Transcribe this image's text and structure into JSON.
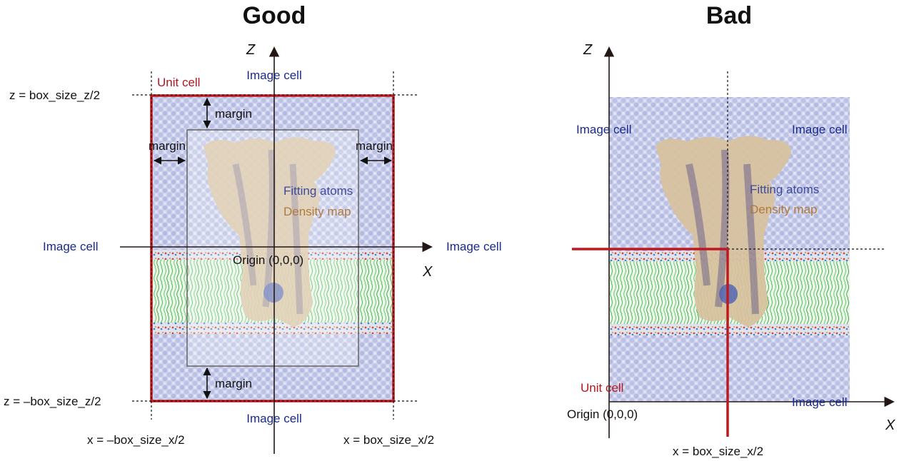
{
  "good": {
    "title": "Good",
    "unit_cell": "Unit cell",
    "image_top": "Image cell",
    "image_bottom": "Image cell",
    "image_left": "Image cell",
    "image_right": "Image cell",
    "margin_top": "margin",
    "margin_left": "margin",
    "margin_right": "margin",
    "margin_bottom": "margin",
    "fitting_atoms": "Fitting atoms",
    "density_map": "Density map",
    "origin": "Origin (0,0,0)",
    "z_top": "z = box_size_z/2",
    "z_bottom": "z = –box_size_z/2",
    "x_left": "x = –box_size_x/2",
    "x_right": "x = box_size_x/2",
    "axis_z": "Z",
    "axis_x": "X"
  },
  "bad": {
    "title": "Bad",
    "image_tl": "Image cell",
    "image_tr": "Image cell",
    "image_br": "Image cell",
    "unit_cell": "Unit cell",
    "fitting_atoms": "Fitting atoms",
    "density_map": "Density map",
    "origin": "Origin (0,0,0)",
    "x_half": "x = box_size_x/2",
    "axis_z": "Z",
    "axis_x": "X"
  },
  "colors": {
    "unit_cell_border": "#c0181e",
    "water": "#c3c8e6",
    "membrane": "#2fbf3c",
    "protein": "#d8c29e",
    "helix": "#3b4a9a"
  }
}
